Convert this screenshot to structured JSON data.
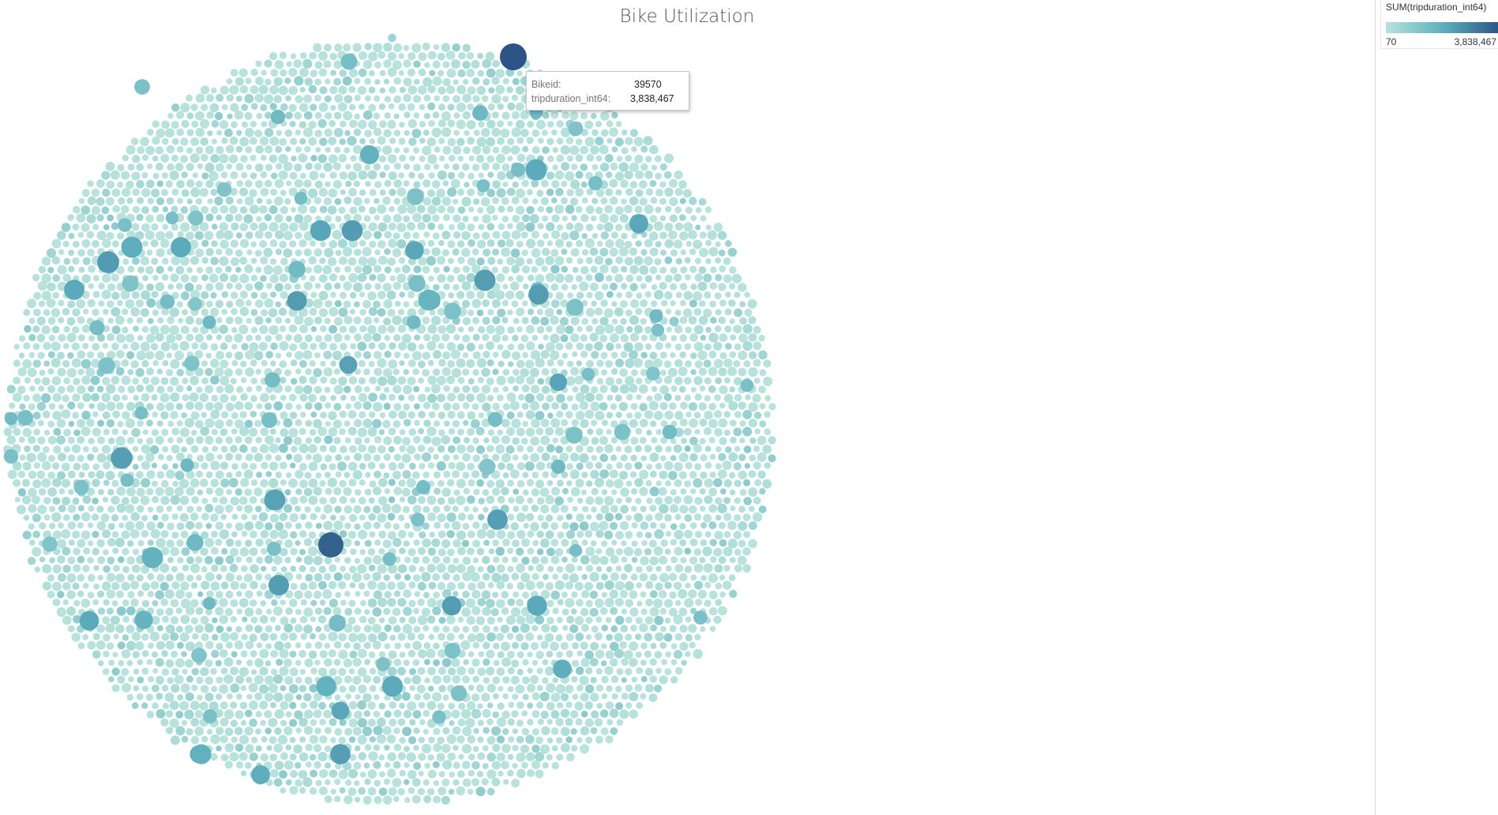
{
  "chart_data": {
    "type": "packed-bubble",
    "title": "Bike Utilization",
    "dimension": "Bikeid",
    "measure": "tripduration_int64",
    "color_legend": {
      "title": "SUM(tripduration_int64)",
      "min_label": "70",
      "max_label": "3,838,467",
      "min_value": 70,
      "max_value": 3838467,
      "color_low": "#b8e2db",
      "color_high": "#2c5585"
    },
    "highlighted_mark": {
      "Bikeid": "39570",
      "tripduration_int64": 3838467
    },
    "points": [
      {
        "Bikeid": "39570",
        "tripduration_int64": 3838467
      }
    ]
  },
  "tooltip": {
    "row1_label": "Bikeid:",
    "row1_value": "39570",
    "row2_label": "tripduration_int64:",
    "row2_value": "3,838,467"
  }
}
